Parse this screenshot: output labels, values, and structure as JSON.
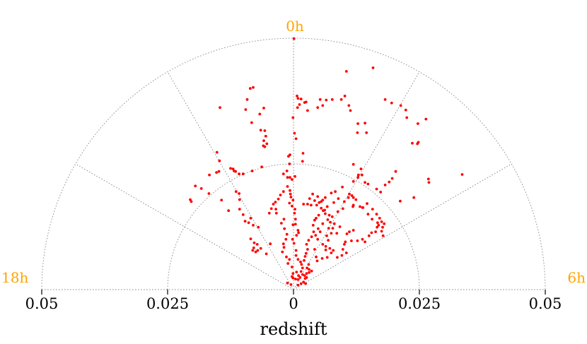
{
  "chart_data": {
    "type": "scatter",
    "projection": "polar-wedge",
    "title": "",
    "xlabel": "redshift",
    "ylabel": "",
    "redshift_range": [
      0,
      0.05
    ],
    "ra_range_hours": [
      18,
      6
    ],
    "radial_ticks": [
      {
        "offset": -0.05,
        "label": "0.05"
      },
      {
        "offset": -0.025,
        "label": "0.025"
      },
      {
        "offset": 0,
        "label": "0"
      },
      {
        "offset": 0.025,
        "label": "0.025"
      },
      {
        "offset": 0.05,
        "label": "0.05"
      }
    ],
    "ra_labels": [
      {
        "angle_deg": 0,
        "label": "0h"
      },
      {
        "angle_deg": -90,
        "label": "18h"
      },
      {
        "angle_deg": 90,
        "label": "6h"
      }
    ],
    "grid": true,
    "grid_arcs": [
      0.025,
      0.05
    ],
    "grid_spokes_deg": [
      -60,
      -30,
      30,
      60
    ],
    "colors": {
      "points": "#ff0000",
      "hour_labels": "#ffa500",
      "grid": "#888888"
    },
    "points_xy": [
      [
        0.0001,
        0.0499
      ],
      [
        0.0105,
        0.0434
      ],
      [
        0.0158,
        0.0441
      ],
      [
        0.0102,
        0.0385
      ],
      [
        0.0095,
        0.0378
      ],
      [
        0.0077,
        0.0378
      ],
      [
        0.0058,
        0.0366
      ],
      [
        0.0048,
        0.0362
      ],
      [
        0.0022,
        0.0372
      ],
      [
        0.0028,
        0.0356
      ],
      [
        0.0015,
        0.0379
      ],
      [
        0.0009,
        0.038
      ],
      [
        0.0007,
        0.0385
      ],
      [
        0.0012,
        0.0368
      ],
      [
        0.0008,
        0.0362
      ],
      [
        0.0025,
        0.0373
      ],
      [
        0.0053,
        0.0378
      ],
      [
        0.0065,
        0.0377
      ],
      [
        0.011,
        0.0366
      ],
      [
        0.0113,
        0.0356
      ],
      [
        0.0128,
        0.033
      ],
      [
        0.0142,
        0.0331
      ],
      [
        0.0127,
        0.0312
      ],
      [
        0.0145,
        0.0312
      ],
      [
        0.0182,
        0.0378
      ],
      [
        0.0195,
        0.0371
      ],
      [
        0.0213,
        0.0366
      ],
      [
        0.0223,
        0.0357
      ],
      [
        0.0225,
        0.0342
      ],
      [
        0.0247,
        0.033
      ],
      [
        0.0263,
        0.0339
      ],
      [
        0.0236,
        0.0291
      ],
      [
        0.0246,
        0.029
      ],
      [
        0.0248,
        0.0293
      ],
      [
        0.0268,
        0.022
      ],
      [
        0.0269,
        0.0213
      ],
      [
        0.0335,
        0.0229
      ],
      [
        -0.0001,
        0.0342
      ],
      [
        -0.0007,
        0.0268
      ],
      [
        -0.001,
        0.0265
      ],
      [
        -0.0008,
        0.025
      ],
      [
        0.0002,
        0.0311
      ],
      [
        0.0005,
        0.03
      ],
      [
        0.0018,
        0.0255
      ],
      [
        0.0019,
        0.0271
      ],
      [
        -0.0059,
        0.0361
      ],
      [
        -0.0067,
        0.0349
      ],
      [
        -0.008,
        0.0402
      ],
      [
        -0.0092,
        0.0378
      ],
      [
        -0.0095,
        0.0358
      ],
      [
        -0.0086,
        0.04
      ],
      [
        -0.0146,
        0.0362
      ],
      [
        -0.0083,
        0.0332
      ],
      [
        -0.0065,
        0.0317
      ],
      [
        -0.0057,
        0.0316
      ],
      [
        -0.0055,
        0.0305
      ],
      [
        -0.0059,
        0.0296
      ],
      [
        -0.0053,
        0.029
      ],
      [
        -0.006,
        0.0286
      ],
      [
        -0.0057,
        0.0284
      ],
      [
        -0.0152,
        0.0273
      ],
      [
        -0.0147,
        0.0256
      ],
      [
        -0.0148,
        0.0235
      ],
      [
        -0.0153,
        0.0233
      ],
      [
        -0.0167,
        0.0228
      ],
      [
        -0.012,
        0.024
      ],
      [
        -0.0125,
        0.0241
      ],
      [
        -0.0118,
        0.0236
      ],
      [
        -0.0115,
        0.0235
      ],
      [
        -0.0108,
        0.023
      ],
      [
        -0.01,
        0.023
      ],
      [
        -0.0082,
        0.0236
      ],
      [
        -0.0063,
        0.0244
      ],
      [
        -0.002,
        0.023
      ],
      [
        -0.0013,
        0.0236
      ],
      [
        -0.0012,
        0.0223
      ],
      [
        -0.0007,
        0.0223
      ],
      [
        -0.0003,
        0.0219
      ],
      [
        0.0003,
        0.0225
      ],
      [
        0.0038,
        0.019
      ],
      [
        0.0032,
        0.0181
      ],
      [
        0.0042,
        0.0177
      ],
      [
        0.0028,
        0.017
      ],
      [
        0.002,
        0.017
      ],
      [
        0.0035,
        0.0168
      ],
      [
        0.0046,
        0.0168
      ],
      [
        0.0051,
        0.0173
      ],
      [
        0.0055,
        0.0175
      ],
      [
        0.0067,
        0.0165
      ],
      [
        0.008,
        0.0173
      ],
      [
        0.0089,
        0.0181
      ],
      [
        0.0101,
        0.0175
      ],
      [
        0.0109,
        0.0183
      ],
      [
        0.0116,
        0.0187
      ],
      [
        0.0124,
        0.0179
      ],
      [
        0.0132,
        0.0165
      ],
      [
        0.0137,
        0.0163
      ],
      [
        0.0119,
        0.0168
      ],
      [
        0.0146,
        0.0171
      ],
      [
        0.0157,
        0.016
      ],
      [
        0.0165,
        0.015
      ],
      [
        0.0171,
        0.0142
      ],
      [
        0.0175,
        0.0135
      ],
      [
        0.0169,
        0.0128
      ],
      [
        0.0166,
        0.0124
      ],
      [
        0.018,
        0.0131
      ],
      [
        0.0163,
        0.0115
      ],
      [
        0.0155,
        0.0113
      ],
      [
        0.0175,
        0.0116
      ],
      [
        0.0178,
        0.0107
      ],
      [
        0.015,
        0.0107
      ],
      [
        0.0137,
        0.01
      ],
      [
        0.0127,
        0.0097
      ],
      [
        0.0142,
        0.0095
      ],
      [
        0.0119,
        0.0118
      ],
      [
        0.0111,
        0.0115
      ],
      [
        0.0106,
        0.0111
      ],
      [
        0.0115,
        0.0097
      ],
      [
        0.0103,
        0.0095
      ],
      [
        0.0101,
        0.009
      ],
      [
        0.0098,
        0.008
      ],
      [
        0.0105,
        0.0073
      ],
      [
        0.0096,
        0.0068
      ],
      [
        0.0087,
        0.0064
      ],
      [
        0.0079,
        0.0078
      ],
      [
        0.0075,
        0.0073
      ],
      [
        0.0072,
        0.0082
      ],
      [
        0.0064,
        0.0086
      ],
      [
        0.0069,
        0.0098
      ],
      [
        0.0066,
        0.0107
      ],
      [
        0.0075,
        0.0112
      ],
      [
        0.0078,
        0.0122
      ],
      [
        0.0081,
        0.0131
      ],
      [
        0.0073,
        0.0134
      ],
      [
        0.0068,
        0.0139
      ],
      [
        0.0063,
        0.0151
      ],
      [
        0.0059,
        0.0157
      ],
      [
        0.0055,
        0.0162
      ],
      [
        0.0067,
        0.0165
      ],
      [
        0.0062,
        0.0158
      ],
      [
        0.0071,
        0.0148
      ],
      [
        0.005,
        0.0148
      ],
      [
        0.0045,
        0.0142
      ],
      [
        0.0042,
        0.0138
      ],
      [
        0.0039,
        0.0128
      ],
      [
        0.004,
        0.0115
      ],
      [
        0.0036,
        0.0105
      ],
      [
        0.003,
        0.0098
      ],
      [
        0.0026,
        0.009
      ],
      [
        0.0028,
        0.008
      ],
      [
        0.0025,
        0.0072
      ],
      [
        0.0023,
        0.0066
      ],
      [
        0.0021,
        0.0058
      ],
      [
        0.003,
        0.005
      ],
      [
        0.0027,
        0.0043
      ],
      [
        0.0031,
        0.004
      ],
      [
        0.0036,
        0.0037
      ],
      [
        0.0031,
        0.0034
      ],
      [
        0.0026,
        0.0032
      ],
      [
        0.0022,
        0.0028
      ],
      [
        0.0026,
        0.0024
      ],
      [
        0.0018,
        0.003
      ],
      [
        0.0015,
        0.0036
      ],
      [
        0.0018,
        0.0043
      ],
      [
        0.0016,
        0.005
      ],
      [
        0.0014,
        0.0055
      ],
      [
        0.0009,
        0.006
      ],
      [
        0.0005,
        0.0068
      ],
      [
        0.0005,
        0.0078
      ],
      [
        0.0001,
        0.0092
      ],
      [
        -0.0002,
        0.01
      ],
      [
        0.0006,
        0.0108
      ],
      [
        0.001,
        0.0113
      ],
      [
        0.0009,
        0.0118
      ],
      [
        0.0004,
        0.013
      ],
      [
        -0.0001,
        0.0129
      ],
      [
        0.0004,
        0.014
      ],
      [
        0.0002,
        0.0152
      ],
      [
        0.0003,
        0.016
      ],
      [
        -0.0003,
        0.0166
      ],
      [
        -0.0008,
        0.0172
      ],
      [
        -0.0001,
        0.0178
      ],
      [
        -0.0005,
        0.0184
      ],
      [
        -0.0006,
        0.019
      ],
      [
        -0.0007,
        0.0197
      ],
      [
        -0.0012,
        0.0205
      ],
      [
        -0.002,
        0.0195
      ],
      [
        -0.0026,
        0.0188
      ],
      [
        -0.003,
        0.018
      ],
      [
        -0.0036,
        0.0174
      ],
      [
        -0.004,
        0.017
      ],
      [
        -0.0044,
        0.0161
      ],
      [
        -0.0048,
        0.0152
      ],
      [
        -0.0035,
        0.016
      ],
      [
        -0.0034,
        0.0152
      ],
      [
        -0.0019,
        0.014
      ],
      [
        -0.0024,
        0.0132
      ],
      [
        -0.0018,
        0.0121
      ],
      [
        -0.0013,
        0.011
      ],
      [
        -0.0015,
        0.01
      ],
      [
        -0.002,
        0.0091
      ],
      [
        -0.0019,
        0.0084
      ],
      [
        -0.0022,
        0.0075
      ],
      [
        -0.0014,
        0.0065
      ],
      [
        -0.0008,
        0.006
      ],
      [
        -0.0011,
        0.0052
      ],
      [
        -0.0003,
        0.0045
      ],
      [
        -0.0001,
        0.0032
      ],
      [
        -0.0003,
        0.0026
      ],
      [
        -0.0001,
        0.0023
      ],
      [
        0.0004,
        0.0021
      ],
      [
        0.0009,
        0.002
      ],
      [
        0.0013,
        0.0024
      ],
      [
        0.001,
        0.0028
      ],
      [
        0.0006,
        0.0035
      ],
      [
        0.0023,
        0.0022
      ],
      [
        0.002,
        0.0015
      ],
      [
        0.0024,
        0.0012
      ],
      [
        0.0015,
        0.0012
      ],
      [
        0.0009,
        0.0009
      ],
      [
        -0.0005,
        0.001
      ],
      [
        -0.0012,
        0.0013
      ],
      [
        -0.0065,
        0.0082
      ],
      [
        -0.0071,
        0.0078
      ],
      [
        -0.0075,
        0.0075
      ],
      [
        -0.0079,
        0.0083
      ],
      [
        -0.0081,
        0.0078
      ],
      [
        -0.0072,
        0.009
      ],
      [
        -0.0078,
        0.0093
      ],
      [
        -0.0085,
        0.0101
      ],
      [
        -0.008,
        0.0128
      ],
      [
        -0.0089,
        0.0133
      ],
      [
        -0.0085,
        0.0142
      ],
      [
        -0.0096,
        0.0136
      ],
      [
        -0.01,
        0.0149
      ],
      [
        -0.0107,
        0.016
      ],
      [
        -0.0107,
        0.0179
      ],
      [
        -0.0108,
        0.0191
      ],
      [
        -0.0114,
        0.0195
      ],
      [
        -0.0129,
        0.0157
      ],
      [
        -0.0143,
        0.0178
      ],
      [
        -0.0168,
        0.0191
      ],
      [
        -0.0183,
        0.0201
      ],
      [
        -0.0195,
        0.0206
      ],
      [
        -0.0203,
        0.0175
      ],
      [
        -0.0205,
        0.0179
      ],
      [
        -0.007,
        0.0124
      ],
      [
        -0.0046,
        0.0091
      ],
      [
        -0.0054,
        0.0071
      ],
      [
        0.0048,
        0.0185
      ],
      [
        0.0058,
        0.0178
      ],
      [
        0.0063,
        0.0183
      ],
      [
        0.0075,
        0.0192
      ],
      [
        0.0083,
        0.0195
      ],
      [
        0.0097,
        0.0204
      ],
      [
        0.0111,
        0.019
      ],
      [
        0.0119,
        0.0215
      ],
      [
        0.0128,
        0.0223
      ],
      [
        0.0136,
        0.0228
      ],
      [
        0.0142,
        0.0213
      ],
      [
        0.0148,
        0.021
      ],
      [
        0.0165,
        0.02
      ],
      [
        0.0173,
        0.0194
      ],
      [
        0.0182,
        0.0208
      ],
      [
        0.019,
        0.0214
      ],
      [
        0.0196,
        0.0221
      ],
      [
        0.0203,
        0.0235
      ],
      [
        0.0212,
        0.0176
      ],
      [
        0.0239,
        0.0183
      ],
      [
        0.0119,
        0.0249
      ],
      [
        0.0129,
        0.0228
      ],
      [
        0.0134,
        0.024
      ],
      [
        0.0118,
        0.0165
      ],
      [
        0.0148,
        0.015
      ],
      [
        0.0156,
        0.014
      ],
      [
        0.0167,
        0.0133
      ],
      [
        0.0177,
        0.0124
      ],
      [
        0.0138,
        0.0163
      ],
      [
        0.0119,
        0.0183
      ],
      [
        0.0098,
        0.0161
      ],
      [
        0.0088,
        0.0155
      ],
      [
        0.0077,
        0.0145
      ],
      [
        0.0092,
        0.0125
      ],
      [
        0.0086,
        0.0112
      ],
      [
        0.007,
        0.0122
      ],
      [
        0.0058,
        0.0131
      ],
      [
        0.0053,
        0.0115
      ],
      [
        0.0049,
        0.0121
      ],
      [
        0.0044,
        0.0108
      ],
      [
        0.0048,
        0.01
      ],
      [
        0.0058,
        0.009
      ],
      [
        0.0064,
        0.0079
      ],
      [
        0.0067,
        0.0064
      ],
      [
        0.0057,
        0.0062
      ],
      [
        0.0047,
        0.0057
      ],
      [
        0.0045,
        0.0065
      ],
      [
        0.0042,
        0.008
      ]
    ]
  }
}
